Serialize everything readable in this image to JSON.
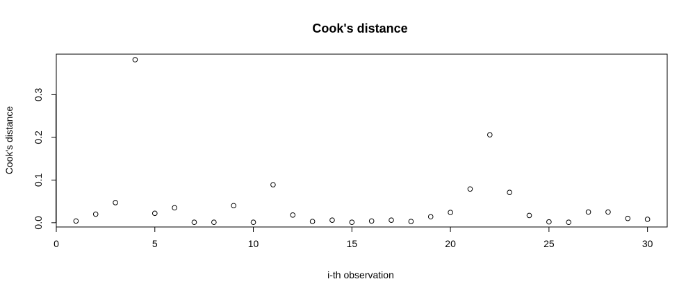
{
  "chart_data": {
    "type": "scatter",
    "title": "Cook's distance",
    "xlabel": "i-th observation",
    "ylabel": "Cook's distance",
    "xlim": [
      0,
      31
    ],
    "ylim": [
      -0.01,
      0.395
    ],
    "xticks": [
      0,
      5,
      10,
      15,
      20,
      25,
      30
    ],
    "yticks": [
      0.0,
      0.1,
      0.2,
      0.3
    ],
    "ytick_labels": [
      "0.0",
      "0.1",
      "0.2",
      "0.3"
    ],
    "grid": false,
    "legend": "none",
    "marker": "open-circle",
    "x": [
      1,
      2,
      3,
      4,
      5,
      6,
      7,
      8,
      9,
      10,
      11,
      12,
      13,
      14,
      15,
      16,
      17,
      18,
      19,
      20,
      21,
      22,
      23,
      24,
      25,
      26,
      27,
      28,
      29,
      30
    ],
    "y": [
      0.004,
      0.02,
      0.047,
      0.382,
      0.022,
      0.035,
      0.001,
      0.001,
      0.04,
      0.001,
      0.089,
      0.018,
      0.003,
      0.006,
      0.001,
      0.004,
      0.006,
      0.003,
      0.014,
      0.024,
      0.079,
      0.206,
      0.071,
      0.017,
      0.002,
      0.001,
      0.025,
      0.025,
      0.01,
      0.008
    ]
  }
}
